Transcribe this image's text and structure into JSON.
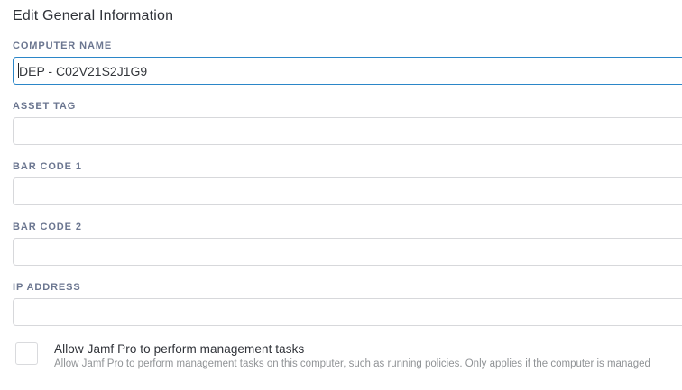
{
  "title": "Edit General Information",
  "fields": [
    {
      "label": "COMPUTER NAME",
      "value": "DEP - C02V21S2J1G9",
      "focused": true
    },
    {
      "label": "ASSET TAG",
      "value": "",
      "focused": false
    },
    {
      "label": "BAR CODE 1",
      "value": "",
      "focused": false
    },
    {
      "label": "BAR CODE 2",
      "value": "",
      "focused": false
    },
    {
      "label": "IP ADDRESS",
      "value": "",
      "focused": false
    }
  ],
  "management_checkbox": {
    "checked": false,
    "label": "Allow Jamf Pro to perform management tasks",
    "description": "Allow Jamf Pro to perform management tasks on this computer, such as running policies. Only applies if the computer is managed"
  },
  "colors": {
    "title_color": "#2f3238",
    "label_color": "#6b7690",
    "input_border": "#d7d8db",
    "focus_border": "#2b86c8",
    "input_text": "#33363b",
    "description_color": "#909396",
    "checkbox_border": "#d9dadd"
  }
}
